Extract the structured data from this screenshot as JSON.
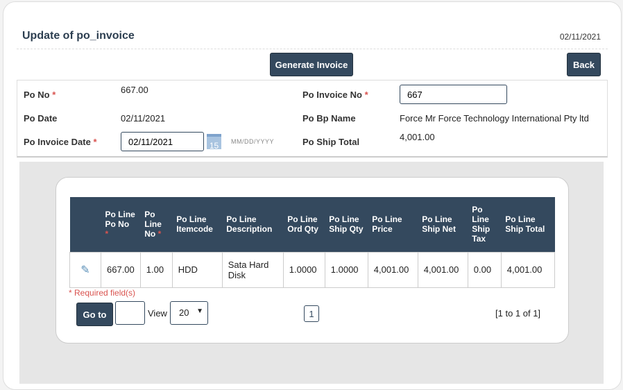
{
  "header": {
    "title": "Update of po_invoice",
    "date": "02/11/2021"
  },
  "buttons": {
    "generate": "Generate Invoice",
    "back": "Back"
  },
  "form": {
    "po_no_label": "Po No",
    "po_no": "667.00",
    "po_date_label": "Po Date",
    "po_date": "02/11/2021",
    "po_invoice_date_label": "Po Invoice Date",
    "po_invoice_date": "02/11/2021",
    "date_format": "MM/DD/YYYY",
    "calendar_day": "15",
    "po_invoice_no_label": "Po Invoice No",
    "po_invoice_no": "667",
    "po_bp_name_label": "Po Bp Name",
    "po_bp_name": "Force Mr Force Technology International Pty ltd",
    "po_ship_total_label": "Po Ship Total",
    "po_ship_total": "4,001.00",
    "required_mark": "*"
  },
  "table": {
    "headers": [
      "Po Line Po No",
      "Po Line No",
      "Po Line Itemcode",
      "Po Line Description",
      "Po Line Ord Qty",
      "Po Line Ship Qty",
      "Po Line Price",
      "Po Line Ship Net",
      "Po Line Ship Tax",
      "Po Line Ship Total"
    ],
    "rows": [
      [
        "667.00",
        "1.00",
        "HDD",
        "Sata Hard Disk",
        "1.0000",
        "1.0000",
        "4,001.00",
        "4,001.00",
        "0.00",
        "4,001.00"
      ]
    ]
  },
  "footer": {
    "required_note": "* Required field(s)",
    "goto": "Go to",
    "view": "View",
    "view_value": "20",
    "page": "1",
    "range": "[1 to 1 of 1]"
  }
}
